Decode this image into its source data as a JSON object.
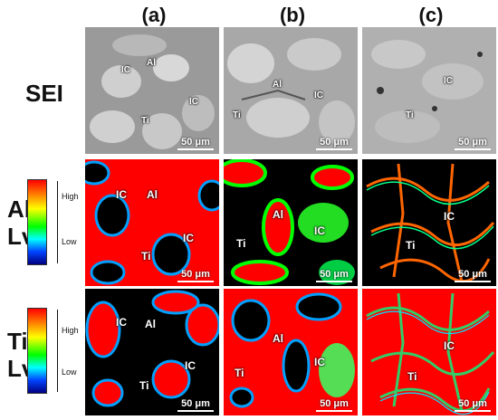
{
  "columns": [
    "(a)",
    "(b)",
    "(c)"
  ],
  "rows": {
    "sei": "SEI",
    "al": [
      "Al",
      "Lv."
    ],
    "ti": [
      "Ti",
      "Lv."
    ]
  },
  "legend": {
    "high": "High",
    "low": "Low"
  },
  "scale_bar": "50 μm",
  "labels": {
    "ic": "IC",
    "al": "Al",
    "ti": "Ti"
  },
  "colors": {
    "map_high": "#ff0000",
    "map_mid": "#00ff00",
    "map_low": "#0000ff",
    "background": "#000000"
  }
}
